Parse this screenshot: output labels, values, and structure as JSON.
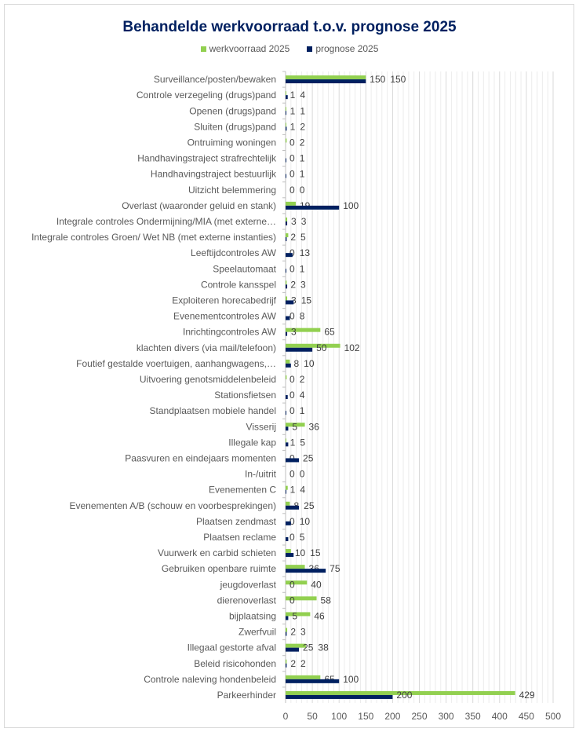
{
  "chart_data": {
    "type": "bar",
    "orientation": "horizontal",
    "title": "Behandelde werkvoorraad t.o.v. prognose 2025",
    "legend_position": "top",
    "xlim": [
      0,
      500
    ],
    "xticks": [
      0,
      50,
      100,
      150,
      200,
      250,
      300,
      350,
      400,
      450,
      500
    ],
    "grid": true,
    "categories": [
      "Surveillance/posten/bewaken",
      "Controle verzegeling (drugs)pand",
      "Openen (drugs)pand",
      "Sluiten (drugs)pand",
      "Ontruiming woningen",
      "Handhavingstraject strafrechtelijk",
      "Handhavingstraject bestuurlijk",
      "Uitzicht belemmering",
      "Overlast (waaronder geluid en stank)",
      "Integrale controles Ondermijning/MIA (met externe…",
      "Integrale controles Groen/ Wet NB (met externe instanties)",
      "Leeftijdcontroles AW",
      "Speelautomaat",
      "Controle kansspel",
      "Exploiteren horecabedrijf",
      "Evenementcontroles AW",
      "Inrichtingcontroles AW",
      "klachten divers (via mail/telefoon)",
      "Foutief gestalde voertuigen, aanhangwagens,…",
      "Uitvoering genotsmiddelenbeleid",
      "Stationsfietsen",
      "Standplaatsen mobiele handel",
      "Visserij",
      "Illegale kap",
      "Paasvuren en eindejaars momenten",
      "In-/uitrit",
      "Evenementen C",
      "Evenementen A/B (schouw en voorbesprekingen)",
      "Plaatsen zendmast",
      "Plaatsen reclame",
      "Vuurwerk en carbid schieten",
      "Gebruiken openbare ruimte",
      "jeugdoverlast",
      "dierenoverlast",
      "bijplaatsing",
      "Zwerfvuil",
      "Illegaal gestorte afval",
      "Beleid risicohonden",
      "Controle naleving hondenbeleid",
      "Parkeerhinder"
    ],
    "series": [
      {
        "name": "werkvoorraad 2025",
        "color": "#92D050",
        "values": [
          150,
          1,
          1,
          1,
          2,
          0,
          0,
          0,
          19,
          3,
          5,
          0,
          0,
          2,
          3,
          0,
          65,
          102,
          8,
          2,
          0,
          0,
          36,
          1,
          0,
          0,
          4,
          8,
          0,
          0,
          10,
          36,
          40,
          58,
          46,
          3,
          38,
          2,
          65,
          429
        ]
      },
      {
        "name": "prognose 2025",
        "color": "#002060",
        "values": [
          150,
          4,
          1,
          2,
          0,
          1,
          1,
          0,
          100,
          3,
          2,
          13,
          1,
          3,
          15,
          8,
          3,
          50,
          10,
          0,
          4,
          1,
          5,
          5,
          25,
          0,
          1,
          25,
          10,
          5,
          15,
          75,
          0,
          0,
          5,
          2,
          25,
          2,
          100,
          200
        ]
      }
    ]
  }
}
